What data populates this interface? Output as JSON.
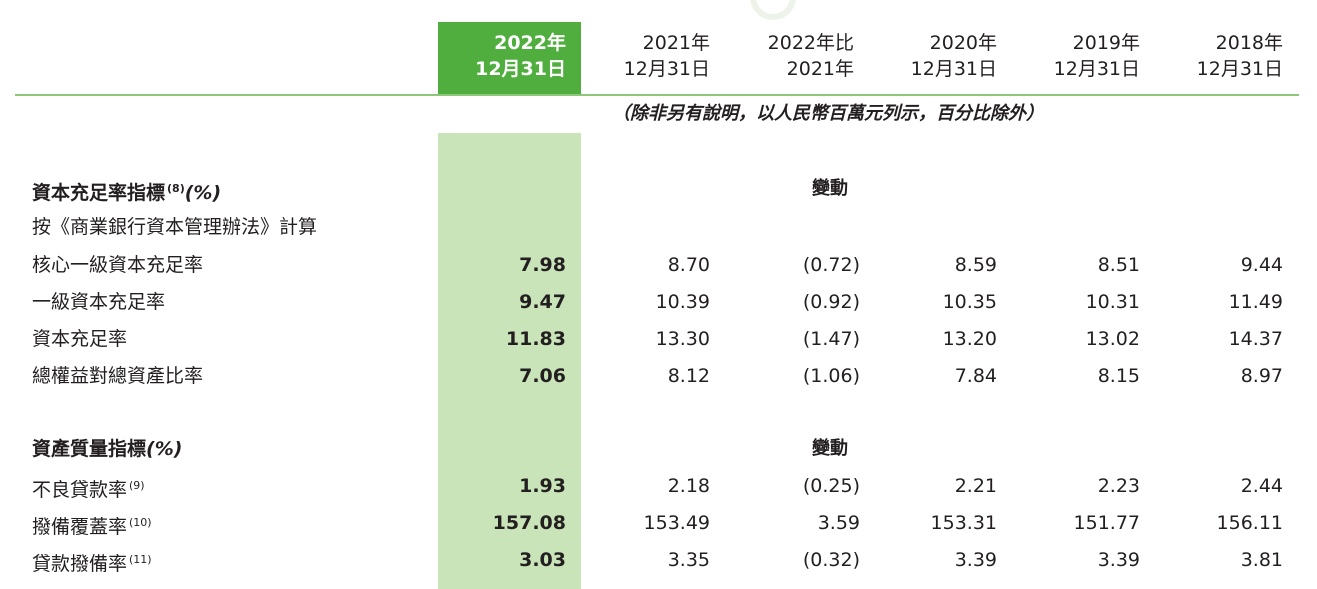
{
  "header": {
    "current": [
      "2022年",
      "12月31日"
    ],
    "columns": [
      [
        "2021年",
        "12月31日"
      ],
      [
        "2022年比",
        "2021年"
      ],
      [
        "2020年",
        "12月31日"
      ],
      [
        "2019年",
        "12月31日"
      ],
      [
        "2018年",
        "12月31日"
      ]
    ]
  },
  "note": "（除非另有說明，以人民幣百萬元列示，百分比除外）",
  "sections": {
    "capital": {
      "title": "資本充足率指標",
      "title_sup": "(8)",
      "title_pct": "(%)",
      "change_label": "變動",
      "subheading": "按《商業銀行資本管理辦法》計算",
      "rows": [
        {
          "label": "核心一級資本充足率",
          "values": [
            "7.98",
            "8.70",
            "(0.72)",
            "8.59",
            "8.51",
            "9.44"
          ]
        },
        {
          "label": "一級資本充足率",
          "values": [
            "9.47",
            "10.39",
            "(0.92)",
            "10.35",
            "10.31",
            "11.49"
          ]
        },
        {
          "label": "資本充足率",
          "values": [
            "11.83",
            "13.30",
            "(1.47)",
            "13.20",
            "13.02",
            "14.37"
          ]
        },
        {
          "label": "總權益對總資產比率",
          "values": [
            "7.06",
            "8.12",
            "(1.06)",
            "7.84",
            "8.15",
            "8.97"
          ]
        }
      ]
    },
    "quality": {
      "title": "資產質量指標",
      "title_pct": "(%)",
      "change_label": "變動",
      "rows": [
        {
          "label": "不良貸款率",
          "sup": "(9)",
          "values": [
            "1.93",
            "2.18",
            "(0.25)",
            "2.21",
            "2.23",
            "2.44"
          ]
        },
        {
          "label": "撥備覆蓋率",
          "sup": "(10)",
          "values": [
            "157.08",
            "153.49",
            "3.59",
            "153.31",
            "151.77",
            "156.11"
          ]
        },
        {
          "label": "貸款撥備率",
          "sup": "(11)",
          "values": [
            "3.03",
            "3.35",
            "(0.32)",
            "3.39",
            "3.39",
            "3.81"
          ]
        }
      ]
    }
  },
  "colors": {
    "highlight_header": "#4fae3d",
    "highlight_body": "#c9e4b8",
    "rule": "#8cc77a"
  }
}
